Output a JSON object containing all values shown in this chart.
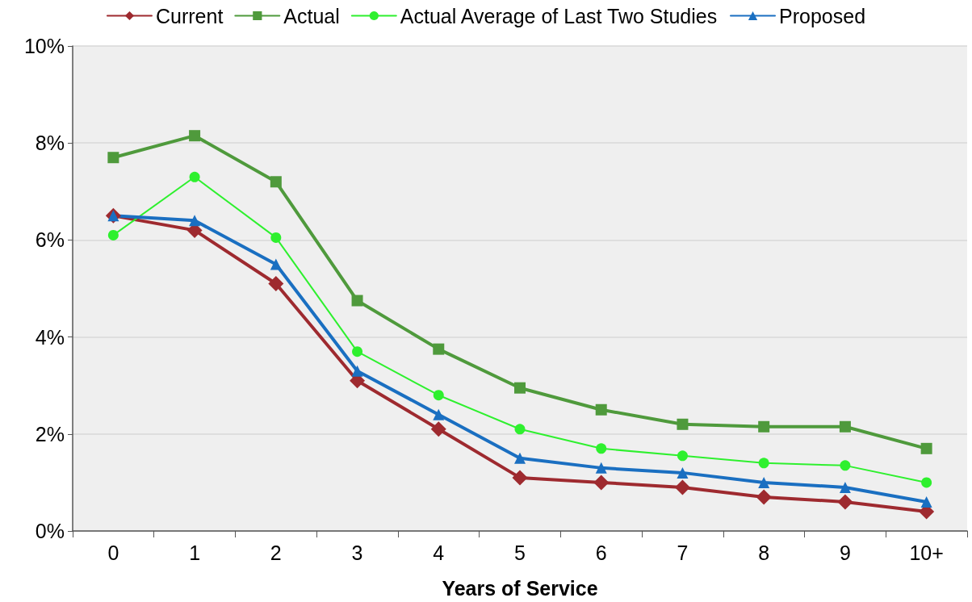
{
  "chart_data": {
    "type": "line",
    "xlabel": "Years of Service",
    "categories": [
      "0",
      "1",
      "2",
      "3",
      "4",
      "5",
      "6",
      "7",
      "8",
      "9",
      "10+"
    ],
    "ylim": [
      0,
      10
    ],
    "yticks": [
      {
        "value": 0,
        "label": "0%"
      },
      {
        "value": 2,
        "label": "2%"
      },
      {
        "value": 4,
        "label": "4%"
      },
      {
        "value": 6,
        "label": "6%"
      },
      {
        "value": 8,
        "label": "8%"
      },
      {
        "value": 10,
        "label": "10%"
      }
    ],
    "grid": "y",
    "legend": "top",
    "line_style": "solid",
    "series": [
      {
        "name": "Current",
        "color": "#9e2a2f",
        "marker": "diamond",
        "values": [
          6.5,
          6.2,
          5.1,
          3.1,
          2.1,
          1.1,
          1.0,
          0.9,
          0.7,
          0.6,
          0.4
        ]
      },
      {
        "name": "Actual",
        "color": "#4f9a3c",
        "marker": "square",
        "values": [
          7.7,
          8.15,
          7.2,
          4.75,
          3.75,
          2.95,
          2.5,
          2.2,
          2.15,
          2.15,
          1.7
        ]
      },
      {
        "name": "Actual Average of Last Two Studies",
        "color": "#2ef02e",
        "marker": "circle",
        "values": [
          6.1,
          7.3,
          6.05,
          3.7,
          2.8,
          2.1,
          1.7,
          1.55,
          1.4,
          1.35,
          1.0
        ]
      },
      {
        "name": "Proposed",
        "color": "#1a6fc1",
        "marker": "triangle",
        "values": [
          6.5,
          6.4,
          5.5,
          3.3,
          2.4,
          1.5,
          1.3,
          1.2,
          1.0,
          0.9,
          0.6
        ]
      }
    ]
  }
}
